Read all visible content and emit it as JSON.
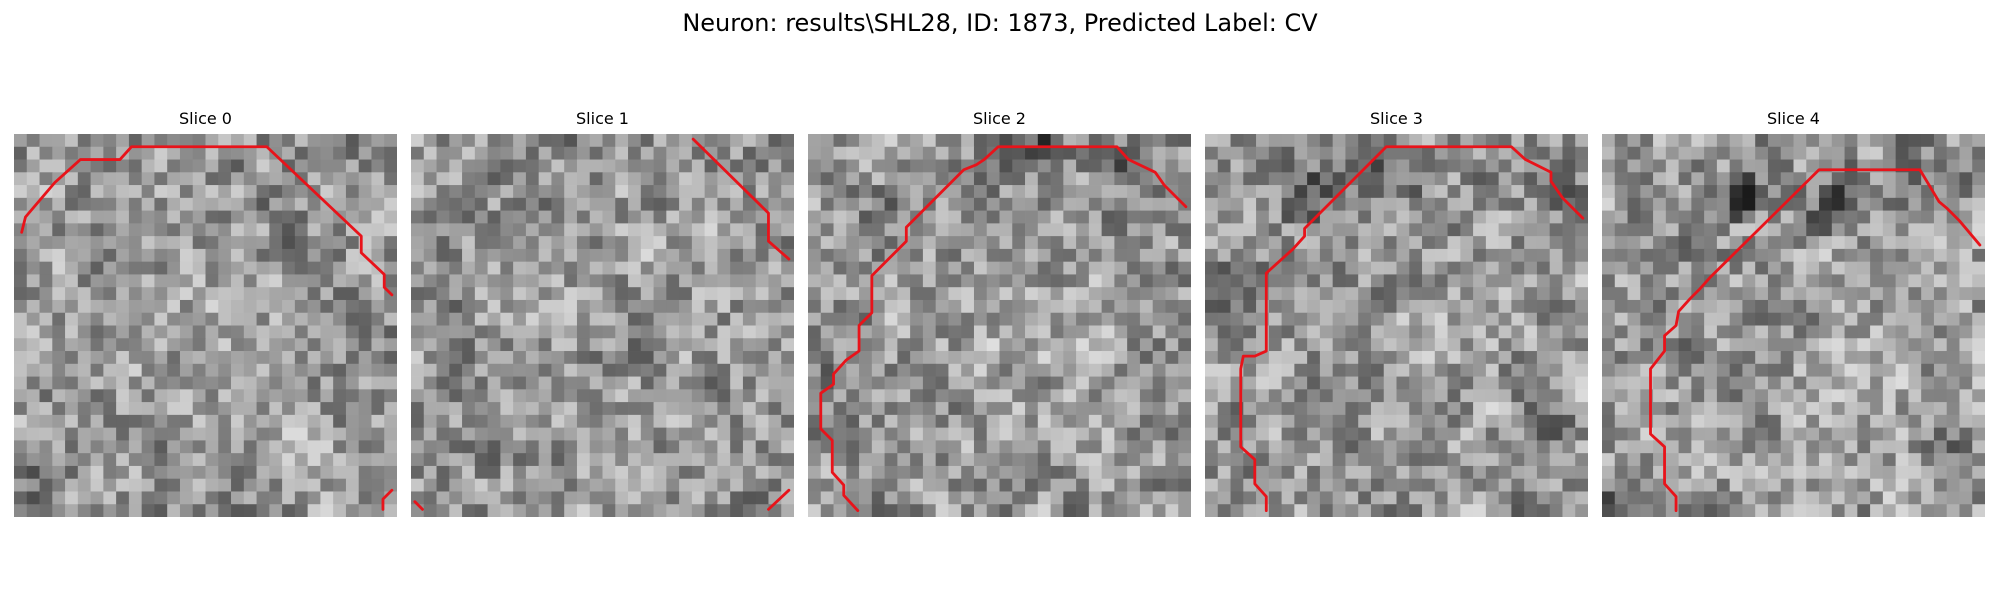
{
  "figure": {
    "title": "Neuron: results\\SHL28, ID: 1873, Predicted Label: CV"
  },
  "colors": {
    "background": "#ffffff",
    "contour": "#e8131a",
    "colormap": "grayscale"
  },
  "panels": [
    {
      "title": "Slice 0"
    },
    {
      "title": "Slice 1"
    },
    {
      "title": "Slice 2"
    },
    {
      "title": "Slice 3"
    },
    {
      "title": "Slice 4"
    }
  ]
}
